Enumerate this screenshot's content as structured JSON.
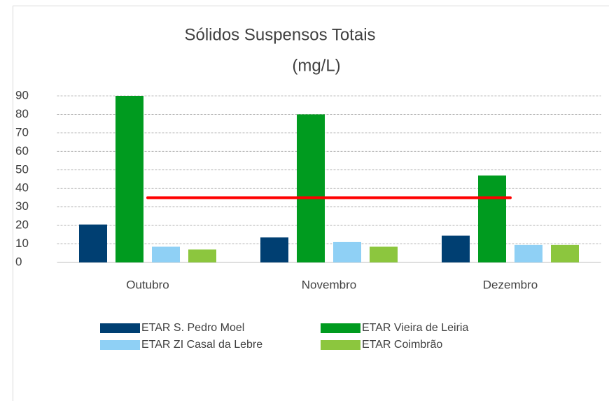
{
  "chart_data": {
    "type": "bar",
    "title": [
      "Sólidos Suspensos Totais",
      "(mg/L)"
    ],
    "categories": [
      "Outubro",
      "Novembro",
      "Dezembro"
    ],
    "series": [
      {
        "name": "ETAR S. Pedro Moel",
        "color": "#003f72",
        "values": [
          20.5,
          13.5,
          14.5
        ]
      },
      {
        "name": "ETAR Vieira de Leiria",
        "color": "#009b1f",
        "values": [
          90,
          80,
          47
        ]
      },
      {
        "name": "ETAR ZI Casal da Lebre",
        "color": "#8fd0f5",
        "values": [
          8.5,
          11,
          9.5
        ]
      },
      {
        "name": "ETAR Coimbrão",
        "color": "#8cc63e",
        "values": [
          7,
          8.5,
          9.5
        ]
      }
    ],
    "reference_line": {
      "values": [
        35,
        35,
        35
      ],
      "color": "#ff0000"
    },
    "ylim": [
      0,
      90
    ],
    "yticks": [
      0,
      10,
      20,
      30,
      40,
      50,
      60,
      70,
      80,
      90
    ],
    "grid": true
  }
}
